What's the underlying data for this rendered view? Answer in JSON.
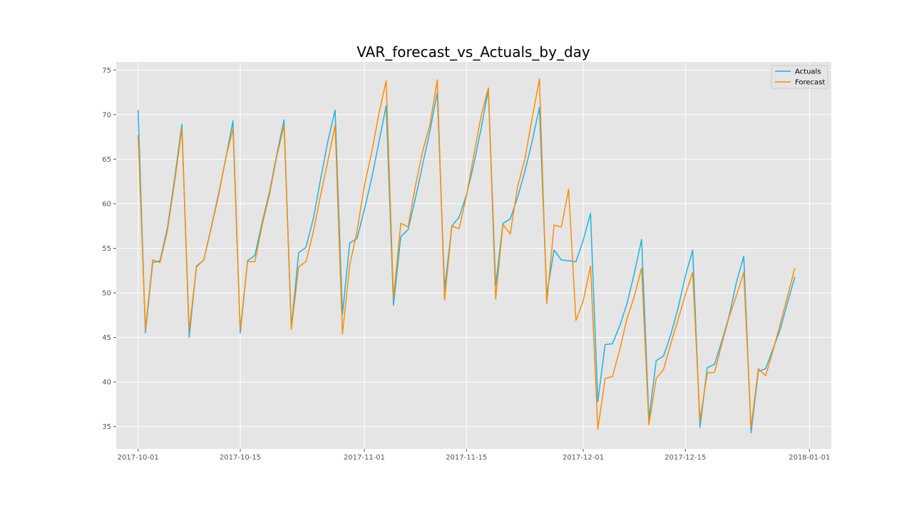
{
  "chart_data": {
    "type": "line",
    "title": "VAR_forecast_vs_Actuals_by_day",
    "xlabel": "",
    "ylabel": "",
    "x_start": "2017-10-01",
    "x_end": "2017-12-31",
    "xlim": [
      "2017-09-28",
      "2018-01-04"
    ],
    "ylim": [
      32.5,
      75.9
    ],
    "grid": true,
    "legend_position": "top-right",
    "x_ticks": [
      "2017-10-01",
      "2017-10-15",
      "2017-11-01",
      "2017-11-15",
      "2017-12-01",
      "2017-12-15",
      "2018-01-01"
    ],
    "y_ticks": [
      35,
      40,
      45,
      50,
      55,
      60,
      65,
      70,
      75
    ],
    "series": [
      {
        "name": "Actuals",
        "color": "#1cb4e8",
        "values": [
          70.5,
          45.5,
          53.4,
          53.6,
          57.2,
          62.8,
          68.9,
          45.0,
          53.0,
          53.7,
          57.3,
          61.0,
          65.0,
          69.3,
          45.5,
          53.6,
          54.2,
          57.9,
          61.3,
          65.5,
          69.4,
          46.1,
          54.5,
          55.1,
          58.3,
          62.7,
          67.0,
          70.5,
          47.6,
          55.6,
          56.1,
          59.3,
          62.8,
          66.9,
          71.0,
          48.6,
          56.3,
          57.1,
          60.6,
          64.4,
          68.2,
          72.5,
          50.4,
          57.5,
          58.5,
          61.0,
          64.4,
          68.4,
          72.8,
          50.8,
          57.8,
          58.3,
          60.7,
          63.6,
          67.0,
          70.8,
          49.8,
          54.8,
          53.7,
          53.6,
          53.5,
          55.9,
          58.9,
          37.8,
          44.2,
          44.3,
          46.3,
          48.8,
          52.2,
          56.0,
          35.8,
          42.4,
          42.9,
          45.3,
          48.3,
          51.9,
          54.8,
          34.9,
          41.6,
          42.0,
          44.6,
          47.4,
          51.2,
          54.1,
          34.3,
          41.2,
          41.5,
          43.7,
          45.9,
          48.9,
          51.8
        ]
      },
      {
        "name": "Forecast",
        "color": "#ff8c00",
        "values": [
          67.7,
          45.9,
          53.7,
          53.4,
          56.9,
          62.4,
          68.4,
          45.8,
          52.9,
          53.7,
          57.2,
          60.8,
          65.1,
          68.4,
          45.9,
          53.5,
          53.5,
          57.6,
          61.0,
          65.3,
          68.8,
          45.9,
          52.9,
          53.5,
          56.8,
          60.9,
          64.8,
          68.8,
          45.4,
          53.1,
          56.9,
          62.0,
          65.7,
          70.1,
          73.8,
          49.4,
          57.8,
          57.4,
          62.0,
          65.9,
          68.9,
          73.9,
          49.2,
          57.5,
          57.2,
          60.9,
          65.4,
          69.8,
          73.0,
          49.3,
          57.7,
          56.6,
          61.9,
          65.0,
          69.6,
          74.0,
          48.8,
          57.6,
          57.4,
          61.6,
          46.9,
          49.1,
          53.0,
          34.7,
          40.4,
          40.6,
          43.6,
          47.1,
          49.6,
          52.8,
          35.2,
          40.4,
          41.4,
          44.3,
          47.0,
          49.8,
          52.3,
          35.7,
          41.0,
          41.1,
          44.3,
          47.3,
          49.7,
          52.3,
          34.9,
          41.5,
          40.7,
          43.5,
          46.5,
          49.6,
          52.8
        ]
      }
    ]
  }
}
